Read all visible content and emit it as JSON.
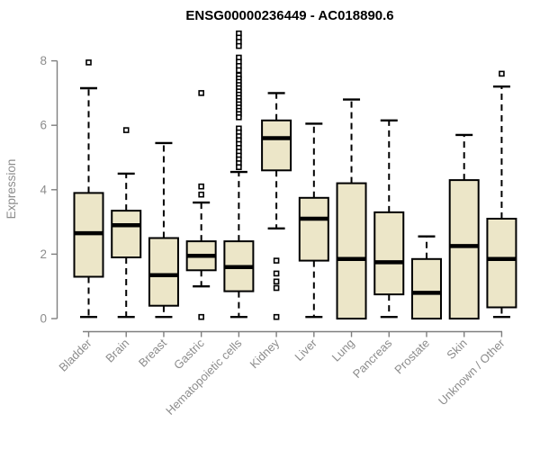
{
  "figure": {
    "title": "ENSG00000236449 - AC018890.6"
  },
  "chart_data": {
    "type": "box",
    "title": "ENSG00000236449 - AC018890.6",
    "ylabel": "Expression",
    "xlabel": "",
    "ylim": [
      0,
      9
    ],
    "yticks": [
      "0",
      "2",
      "4",
      "6",
      "8"
    ],
    "grid": false,
    "legend": "none",
    "categories": [
      "Bladder",
      "Brain",
      "Breast",
      "Gastric",
      "Hematopoietic cells",
      "Kidney",
      "Liver",
      "Lung",
      "Pancreas",
      "Prostate",
      "Skin",
      "Unknown / Other"
    ],
    "boxes": [
      {
        "category": "Bladder",
        "whisker_low": 0.05,
        "q1": 1.3,
        "median": 2.65,
        "q3": 3.9,
        "whisker_high": 7.15,
        "outliers": [
          7.95
        ]
      },
      {
        "category": "Brain",
        "whisker_low": 0.05,
        "q1": 1.9,
        "median": 2.9,
        "q3": 3.35,
        "whisker_high": 4.5,
        "outliers": [
          5.85
        ]
      },
      {
        "category": "Breast",
        "whisker_low": 0.05,
        "q1": 0.4,
        "median": 1.35,
        "q3": 2.5,
        "whisker_high": 5.45,
        "outliers": []
      },
      {
        "category": "Gastric",
        "whisker_low": 1.0,
        "q1": 1.5,
        "median": 1.95,
        "q3": 2.4,
        "whisker_high": 3.6,
        "outliers": [
          7.0,
          4.1,
          3.85,
          0.05
        ]
      },
      {
        "category": "Hematopoietic cells",
        "whisker_low": 0.05,
        "q1": 0.85,
        "median": 1.6,
        "q3": 2.4,
        "whisker_high": 4.55,
        "outliers": [
          8.85,
          8.72,
          8.59,
          8.46,
          8.1,
          7.97,
          7.84,
          7.71,
          7.55,
          7.45,
          7.35,
          7.25,
          7.15,
          7.05,
          6.95,
          6.85,
          6.75,
          6.65,
          6.55,
          6.45,
          6.35,
          6.25,
          5.9,
          5.78,
          5.66,
          5.54,
          5.42,
          5.3,
          5.18,
          5.06,
          4.94,
          4.82,
          4.7
        ]
      },
      {
        "category": "Kidney",
        "whisker_low": 2.8,
        "q1": 4.6,
        "median": 5.6,
        "q3": 6.15,
        "whisker_high": 7.0,
        "outliers": [
          1.8,
          1.4,
          1.15,
          0.95,
          0.05
        ]
      },
      {
        "category": "Liver",
        "whisker_low": 0.05,
        "q1": 1.8,
        "median": 3.1,
        "q3": 3.75,
        "whisker_high": 6.05,
        "outliers": []
      },
      {
        "category": "Lung",
        "whisker_low": 0.0,
        "q1": 0.0,
        "median": 1.85,
        "q3": 4.2,
        "whisker_high": 6.8,
        "outliers": []
      },
      {
        "category": "Pancreas",
        "whisker_low": 0.05,
        "q1": 0.75,
        "median": 1.75,
        "q3": 3.3,
        "whisker_high": 6.15,
        "outliers": []
      },
      {
        "category": "Prostate",
        "whisker_low": 0.0,
        "q1": 0.0,
        "median": 0.8,
        "q3": 1.85,
        "whisker_high": 2.55,
        "outliers": []
      },
      {
        "category": "Skin",
        "whisker_low": 0.0,
        "q1": 0.0,
        "median": 2.25,
        "q3": 4.3,
        "whisker_high": 5.7,
        "outliers": []
      },
      {
        "category": "Unknown / Other",
        "whisker_low": 0.05,
        "q1": 0.35,
        "median": 1.85,
        "q3": 3.1,
        "whisker_high": 7.2,
        "outliers": [
          7.6
        ]
      }
    ],
    "style": {
      "box_fill": "#ece6c8",
      "box_stroke": "#000000",
      "median_color": "#000000",
      "whisker_color": "#000000",
      "outlier_stroke": "#000000",
      "outlier_fill": "#ffffff",
      "axis_line_color": "#7f7f7f",
      "axis_text_color": "#8c8c8c",
      "title_color": "#000000",
      "background": "#ffffff"
    }
  }
}
